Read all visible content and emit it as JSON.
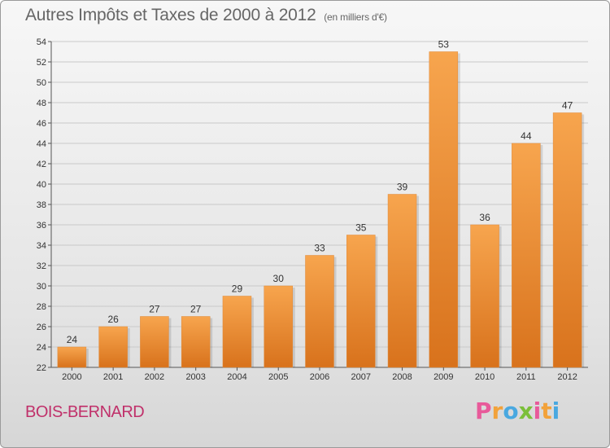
{
  "chart_data": {
    "type": "bar",
    "title": "Autres Impôts et Taxes de 2000 à 2012",
    "subtitle": "(en milliers d'€)",
    "categories": [
      "2000",
      "2001",
      "2002",
      "2003",
      "2004",
      "2005",
      "2006",
      "2007",
      "2008",
      "2009",
      "2010",
      "2011",
      "2012"
    ],
    "values": [
      24,
      26,
      27,
      27,
      29,
      30,
      33,
      35,
      39,
      53,
      36,
      44,
      47
    ],
    "ylim": [
      22,
      54
    ],
    "yticks": [
      22,
      24,
      26,
      28,
      30,
      32,
      34,
      36,
      38,
      40,
      42,
      44,
      46,
      48,
      50,
      52,
      54
    ],
    "grid": true,
    "bar_color": "#f08a2a"
  },
  "footer": {
    "location": "BOIS-BERNARD",
    "brand_letters": [
      "P",
      "r",
      "o",
      "x",
      "i",
      "t",
      "i"
    ],
    "brand_colors": [
      "#e85a9a",
      "#f2a23a",
      "#49a8e0",
      "#7bbf3a",
      "#e85a9a",
      "#f2a23a",
      "#49a8e0"
    ]
  }
}
